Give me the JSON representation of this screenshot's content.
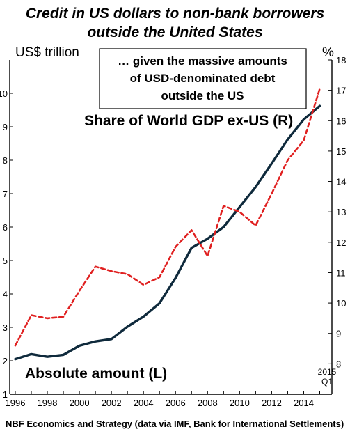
{
  "title": {
    "line1": "Credit in US dollars to non-bank borrowers",
    "line2": "outside the United States"
  },
  "footer": "NBF Economics and Strategy (data via IMF, Bank for International Settlements)",
  "chart_data": {
    "type": "line",
    "title": "Credit in US dollars to non-bank borrowers outside the United States",
    "left_axis_title": "US$ trillion",
    "right_axis_title": "%",
    "annotation": [
      "… given the massive amounts",
      "of USD-denominated debt",
      "outside the US"
    ],
    "period_note": [
      "2015",
      "Q1"
    ],
    "ylim_left": [
      1,
      11
    ],
    "ylim_right": [
      7,
      18
    ],
    "left_ticks": [
      "1",
      "2",
      "3",
      "4",
      "5",
      "6",
      "7",
      "8",
      "9",
      "10"
    ],
    "right_ticks": [
      "8",
      "9",
      "10",
      "11",
      "12",
      "13",
      "14",
      "15",
      "16",
      "17",
      "18"
    ],
    "x_ticks": [
      "1996",
      "1998",
      "2000",
      "2002",
      "2004",
      "2006",
      "2008",
      "2010",
      "2012",
      "2014"
    ],
    "xlim": [
      1996,
      2015.5
    ],
    "series": [
      {
        "name": "Absolute amount (L)",
        "axis": "left",
        "color": "#0f2a3c",
        "style": "solid",
        "x": [
          1996,
          1997,
          1998,
          1999,
          2000,
          2001,
          2002,
          2003,
          2004,
          2005,
          2006,
          2007,
          2008,
          2009,
          2010,
          2011,
          2012,
          2013,
          2014,
          2015
        ],
        "values": [
          2.05,
          2.2,
          2.12,
          2.18,
          2.45,
          2.58,
          2.65,
          3.02,
          3.32,
          3.72,
          4.48,
          5.38,
          5.65,
          6.0,
          6.6,
          7.2,
          7.9,
          8.62,
          9.22,
          9.62
        ]
      },
      {
        "name": "Share of World GDP ex-US (R)",
        "axis": "right",
        "color": "#e02020",
        "style": "dashed",
        "x": [
          1996,
          1997,
          1998,
          1999,
          2000,
          2001,
          2002,
          2003,
          2004,
          2005,
          2006,
          2007,
          2008,
          2009,
          2010,
          2011,
          2012,
          2013,
          2014,
          2015
        ],
        "values": [
          8.6,
          9.6,
          9.5,
          9.55,
          10.4,
          11.2,
          11.05,
          10.95,
          10.6,
          10.85,
          11.85,
          12.4,
          11.55,
          13.2,
          13.0,
          12.55,
          13.6,
          14.7,
          15.35,
          17.05
        ]
      }
    ]
  }
}
